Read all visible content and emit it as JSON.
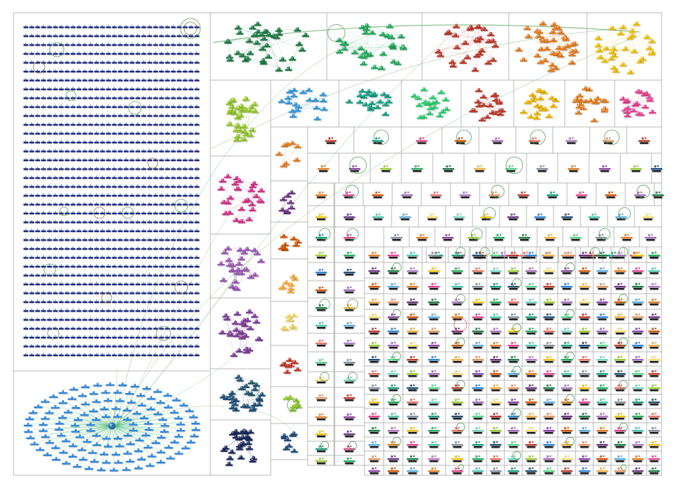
{
  "graph": {
    "layout": "group-in-a-box",
    "background": "#ffffff",
    "edge_color": "#2e8b2e",
    "border_color": "#b8b8b8",
    "groups": [
      {
        "id": "G1",
        "color": "#1a237e",
        "shape": "grid"
      },
      {
        "id": "G2",
        "color": "#2e86de",
        "shape": "hub"
      },
      {
        "id": "G3",
        "color": "#1e7d46",
        "shape": "cluster"
      },
      {
        "id": "G4",
        "color": "#27ae60",
        "shape": "cluster"
      },
      {
        "id": "G5",
        "color": "#c0392b",
        "shape": "cluster"
      },
      {
        "id": "G6",
        "color": "#e67e22",
        "shape": "cluster"
      },
      {
        "id": "G7",
        "color": "#f1c40f",
        "shape": "cluster"
      },
      {
        "id": "G8",
        "color": "#9acd32",
        "shape": "cluster"
      },
      {
        "id": "G9",
        "color": "#3498db",
        "shape": "cluster"
      },
      {
        "id": "G10",
        "color": "#16a085",
        "shape": "cluster"
      },
      {
        "id": "G11",
        "color": "#2ecc71",
        "shape": "cluster"
      },
      {
        "id": "G12",
        "color": "#c0392b",
        "shape": "cluster"
      },
      {
        "id": "G13",
        "color": "#f0b400",
        "shape": "cluster"
      },
      {
        "id": "G14",
        "color": "#e67e22",
        "shape": "cluster"
      },
      {
        "id": "G15",
        "color": "#e84393",
        "shape": "cluster"
      },
      {
        "id": "G16",
        "color": "#d6308a",
        "shape": "cluster"
      },
      {
        "id": "G17",
        "color": "#9b59b6",
        "shape": "cluster"
      },
      {
        "id": "G18",
        "color": "#7d3c98",
        "shape": "cluster"
      },
      {
        "id": "G19",
        "color": "#1f4e79",
        "shape": "cluster"
      },
      {
        "id": "G20",
        "color": "#1c2a5e",
        "shape": "cluster"
      }
    ],
    "palette": [
      "#e67e22",
      "#c0392b",
      "#f1c40f",
      "#8e44ad",
      "#16a085",
      "#6c3483",
      "#9acd32",
      "#e84393",
      "#2e86de",
      "#27ae60",
      "#d35400",
      "#1f4e79",
      "#1e7d46",
      "#a569bd",
      "#48c9b0",
      "#f5b041",
      "#ec7063",
      "#5dade2",
      "#58d68d",
      "#af7ac5",
      "#f7dc6f",
      "#85929e",
      "#e59866",
      "#76d7c4"
    ]
  }
}
